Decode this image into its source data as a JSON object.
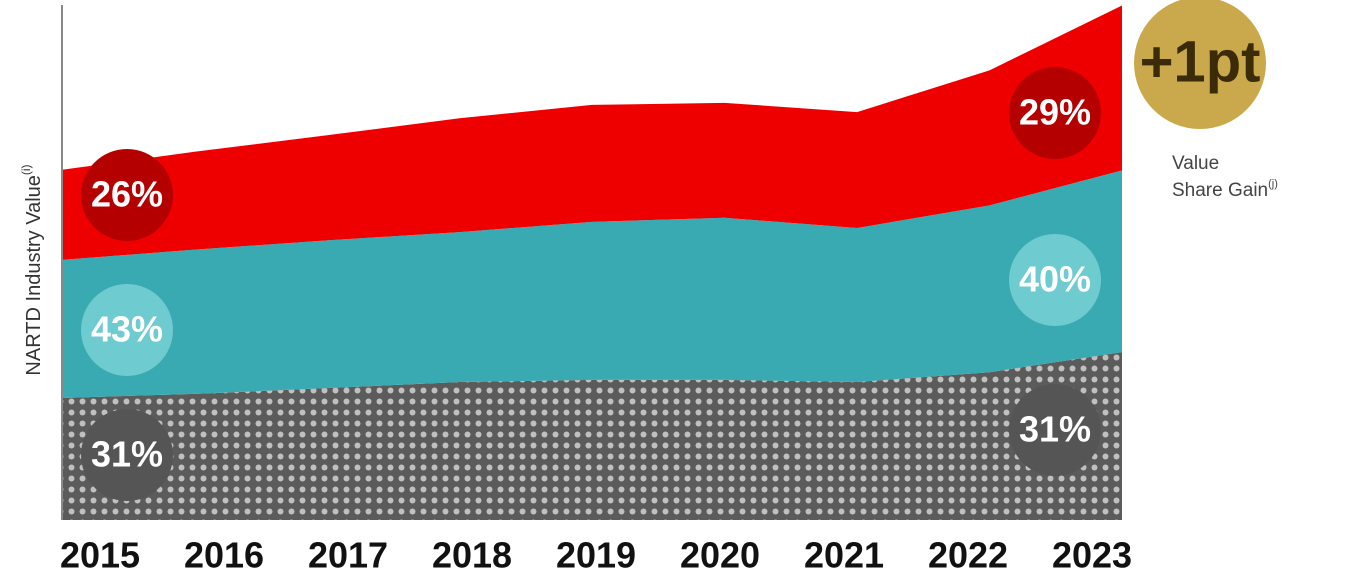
{
  "chart_data": {
    "type": "stacked_area",
    "ylabel": "NARTD Industry Value",
    "ylabel_note": "(i)",
    "categories": [
      "2015",
      "2016",
      "2017",
      "2018",
      "2019",
      "2020",
      "2021",
      "2022",
      "2023"
    ],
    "ylim": [
      0,
      100
    ],
    "series": [
      {
        "color": "#5b5b5b",
        "circle_color": "#555555",
        "share_labels": [
          "31%",
          "31%"
        ],
        "values": [
          23.7,
          24.5,
          25.6,
          26.8,
          27.2,
          27.2,
          26.8,
          28.7,
          32.6
        ]
      },
      {
        "color": "#39aab1",
        "circle_color": "#6ecbd0",
        "share_labels": [
          "43%",
          "40%"
        ],
        "values": [
          26.8,
          28.0,
          28.7,
          29.1,
          30.7,
          31.5,
          29.9,
          32.4,
          35.3
        ]
      },
      {
        "color": "#ee0000",
        "circle_color": "#b50000",
        "share_labels": [
          "26%",
          "29%"
        ],
        "values": [
          17.5,
          19.0,
          20.4,
          22.1,
          22.7,
          22.3,
          22.5,
          26.2,
          32.0
        ]
      }
    ],
    "badge": "+1pt",
    "badge_color": "#c9a94b",
    "badge_caption": [
      "Value",
      "Share Gain"
    ],
    "badge_caption_note": "(j)"
  }
}
